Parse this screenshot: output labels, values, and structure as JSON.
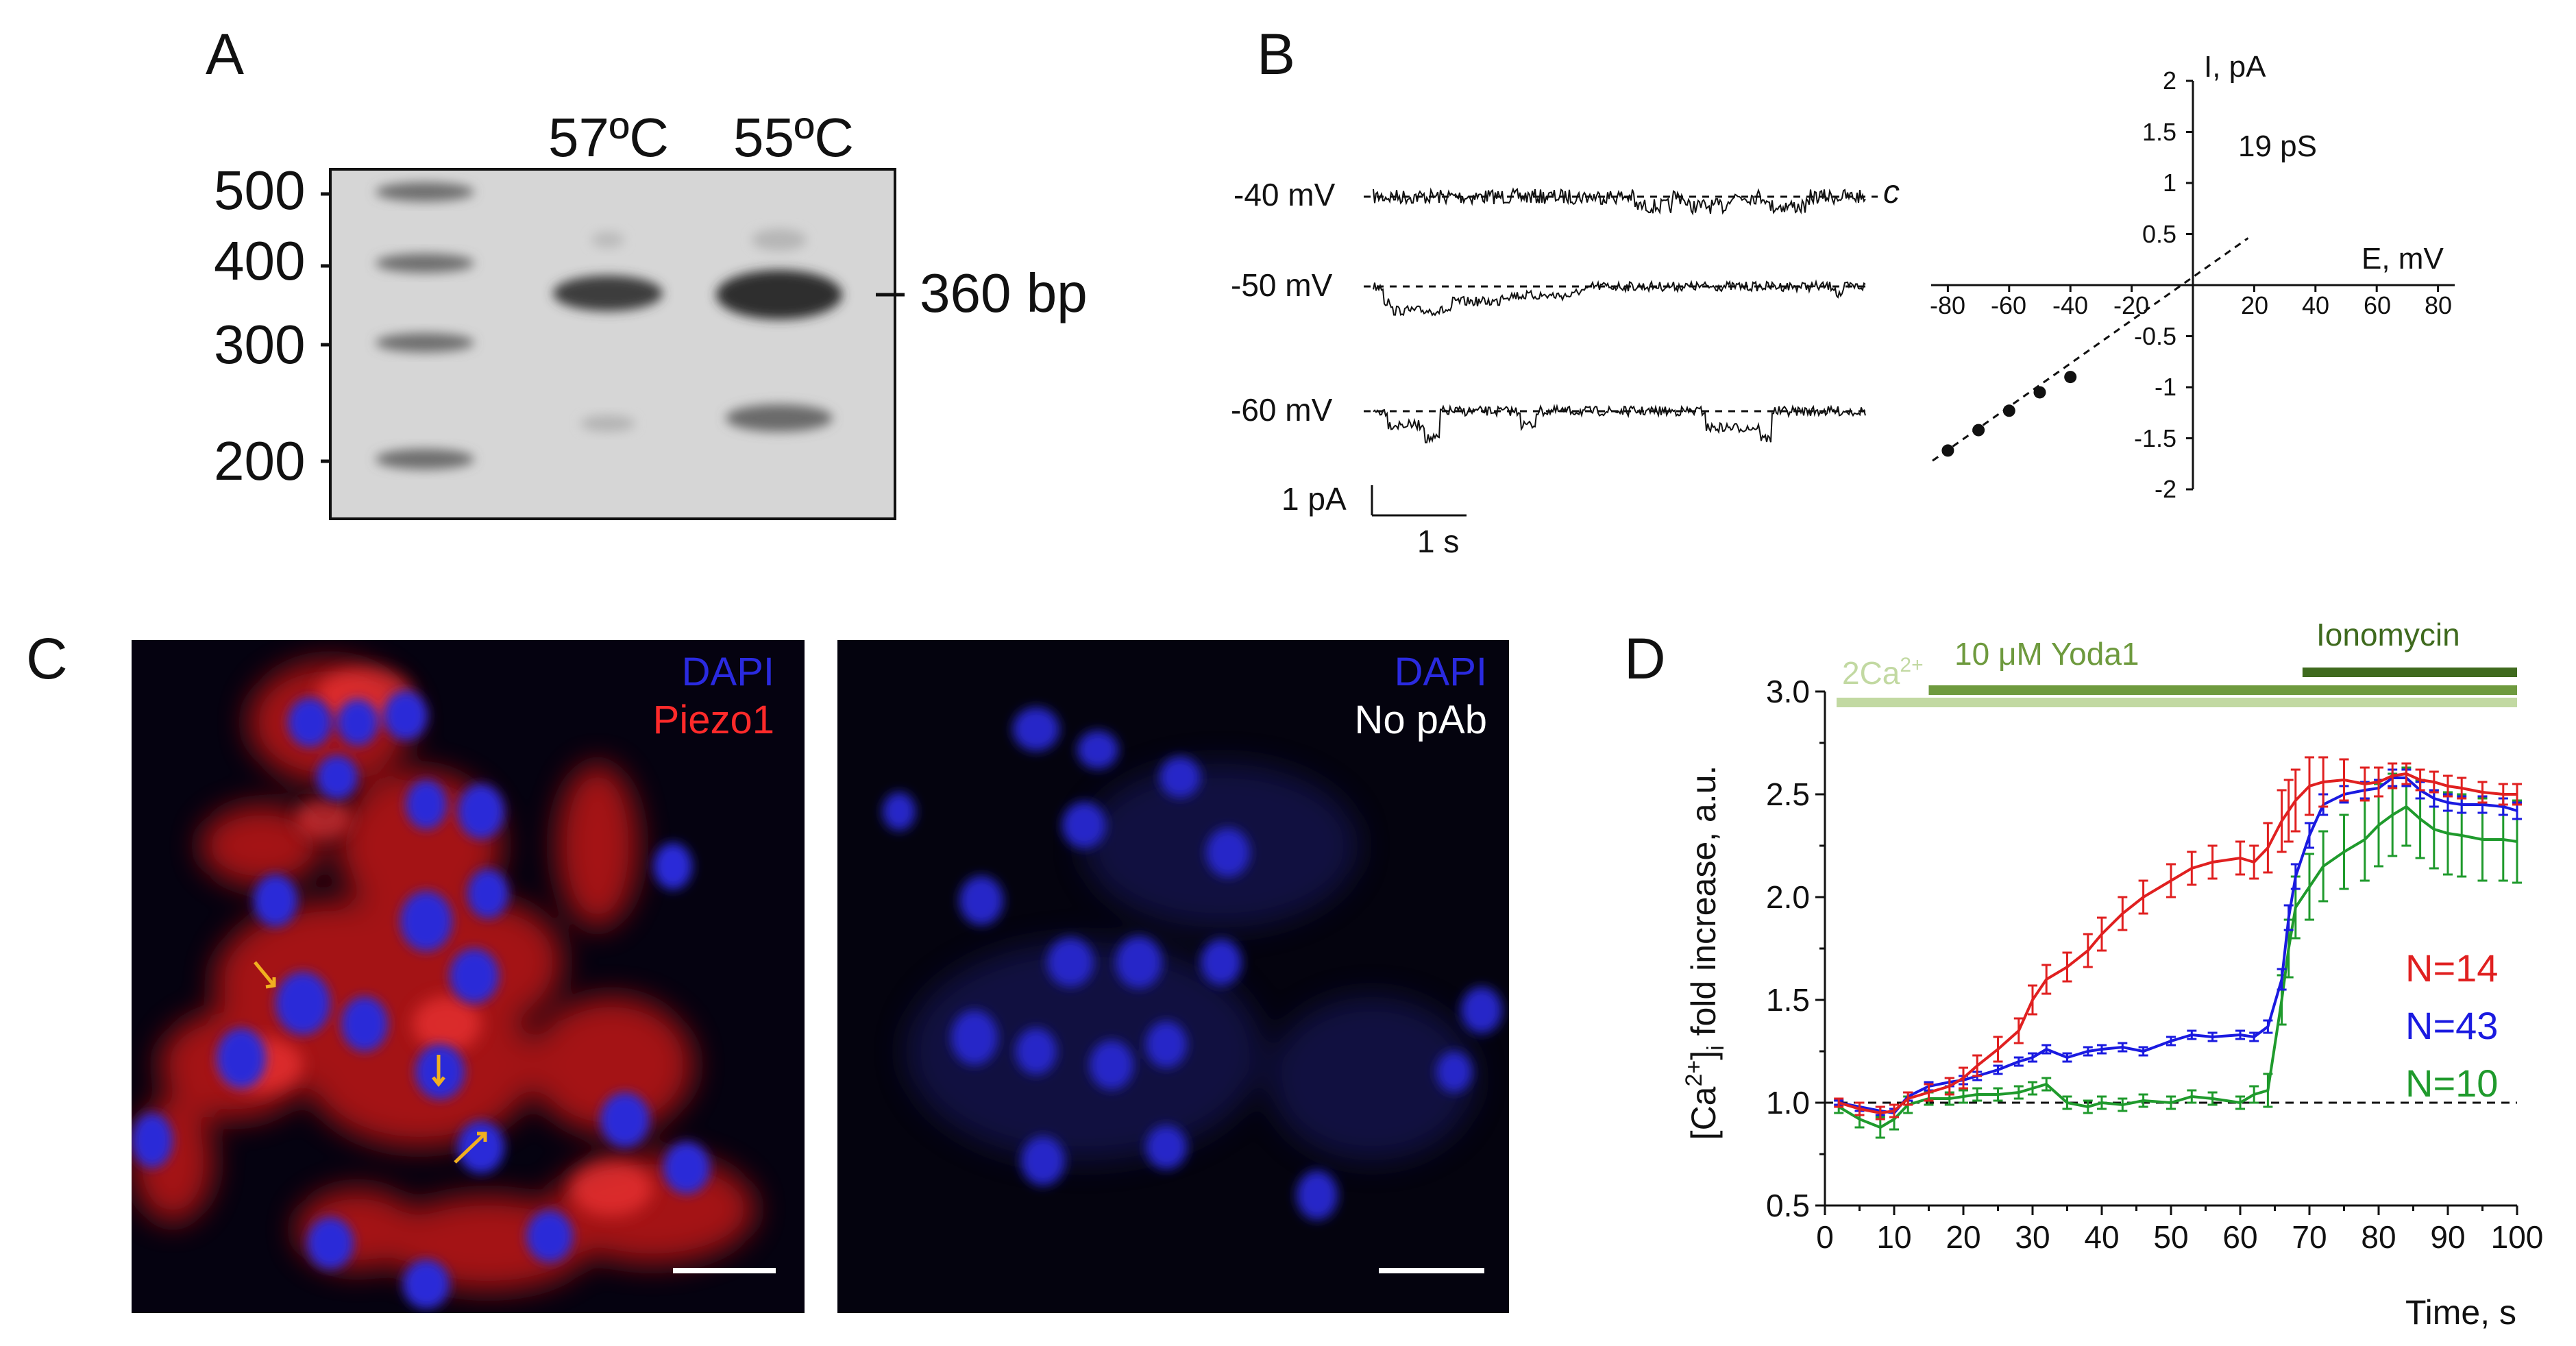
{
  "panels": {
    "A": {
      "label": "A",
      "lanes": [
        "57ºC",
        "55ºC"
      ],
      "markers": [
        "500",
        "400",
        "300",
        "200"
      ],
      "band_label": "360 bp"
    },
    "B": {
      "label": "B",
      "traces": [
        "-40 mV",
        "-50 mV",
        "-60 mV"
      ],
      "closed_label": "c",
      "scalebar_y": "1 pA",
      "scalebar_x": "1 s",
      "iv": {
        "y_label": "I, pA",
        "x_label": "E, mV",
        "conductance": "19 pS",
        "x_ticks": [
          "-80",
          "-60",
          "-40",
          "-20",
          "20",
          "40",
          "60",
          "80"
        ],
        "y_ticks": [
          "2",
          "1.5",
          "1",
          "0.5",
          "-0.5",
          "-1",
          "-1.5",
          "-2"
        ]
      }
    },
    "C": {
      "label": "C",
      "left": {
        "dapi": "DAPI",
        "stain": "Piezo1"
      },
      "right": {
        "dapi": "DAPI",
        "stain": "No pAb"
      }
    },
    "D": {
      "label": "D",
      "bars": [
        "2Ca",
        "2+",
        "10 μM Yoda1",
        "Ionomycin"
      ],
      "legend": [
        "N=14",
        "N=43",
        "N=10"
      ]
    }
  },
  "chart_data": [
    {
      "panel": "B",
      "type": "scatter",
      "xlabel": "E, mV",
      "ylabel": "I, pA",
      "annotation": "19 pS",
      "xlim": [
        -85,
        85
      ],
      "ylim": [
        -2,
        2
      ],
      "points": {
        "x": [
          -80,
          -70,
          -60,
          -50,
          -40
        ],
        "y": [
          -1.62,
          -1.42,
          -1.23,
          -1.05,
          -0.9
        ]
      },
      "fit_line": {
        "x": [
          -85,
          18
        ],
        "y": [
          -1.72,
          0.46
        ]
      }
    },
    {
      "panel": "D",
      "type": "line",
      "xlabel": "Time, s",
      "ylabel": "[Ca2+]i fold increase, a.u.",
      "xlim": [
        0,
        100
      ],
      "ylim": [
        0.5,
        3.0
      ],
      "x_ticks": [
        0,
        10,
        20,
        30,
        40,
        50,
        60,
        70,
        80,
        90,
        100
      ],
      "y_ticks": [
        0.5,
        1.0,
        1.5,
        2.0,
        2.5,
        3.0
      ],
      "baseline": 1.0,
      "x": [
        2,
        5,
        8,
        10,
        12,
        15,
        18,
        20,
        22,
        25,
        28,
        30,
        32,
        35,
        38,
        40,
        43,
        46,
        50,
        53,
        56,
        60,
        62,
        64,
        66,
        67,
        68,
        70,
        72,
        75,
        78,
        80,
        82,
        84,
        86,
        88,
        90,
        92,
        95,
        98,
        100
      ],
      "series": [
        {
          "name": "N=14",
          "color": "#e02020",
          "values": [
            1.0,
            0.97,
            0.95,
            0.96,
            1.02,
            1.05,
            1.08,
            1.12,
            1.18,
            1.26,
            1.35,
            1.5,
            1.6,
            1.66,
            1.74,
            1.82,
            1.92,
            2.0,
            2.08,
            2.14,
            2.17,
            2.19,
            2.17,
            2.24,
            2.37,
            2.42,
            2.47,
            2.54,
            2.56,
            2.57,
            2.55,
            2.56,
            2.59,
            2.6,
            2.57,
            2.56,
            2.54,
            2.53,
            2.51,
            2.5,
            2.5
          ],
          "error": [
            0.02,
            0.03,
            0.03,
            0.03,
            0.03,
            0.04,
            0.04,
            0.05,
            0.05,
            0.06,
            0.06,
            0.07,
            0.07,
            0.07,
            0.08,
            0.08,
            0.08,
            0.08,
            0.08,
            0.08,
            0.08,
            0.08,
            0.08,
            0.12,
            0.15,
            0.15,
            0.15,
            0.14,
            0.12,
            0.1,
            0.08,
            0.07,
            0.06,
            0.05,
            0.05,
            0.05,
            0.05,
            0.05,
            0.05,
            0.05,
            0.05
          ]
        },
        {
          "name": "N=43",
          "color": "#1a1ae0",
          "values": [
            1.0,
            0.98,
            0.96,
            0.95,
            1.03,
            1.08,
            1.1,
            1.11,
            1.13,
            1.16,
            1.2,
            1.22,
            1.26,
            1.22,
            1.25,
            1.26,
            1.27,
            1.25,
            1.3,
            1.33,
            1.32,
            1.33,
            1.32,
            1.37,
            1.6,
            1.9,
            2.1,
            2.3,
            2.45,
            2.5,
            2.52,
            2.53,
            2.58,
            2.58,
            2.52,
            2.48,
            2.46,
            2.45,
            2.45,
            2.44,
            2.42
          ],
          "error": [
            0.01,
            0.02,
            0.02,
            0.02,
            0.02,
            0.02,
            0.02,
            0.02,
            0.02,
            0.02,
            0.02,
            0.02,
            0.02,
            0.02,
            0.02,
            0.02,
            0.02,
            0.02,
            0.02,
            0.02,
            0.02,
            0.02,
            0.02,
            0.03,
            0.05,
            0.06,
            0.06,
            0.06,
            0.05,
            0.04,
            0.04,
            0.04,
            0.04,
            0.04,
            0.04,
            0.04,
            0.04,
            0.04,
            0.04,
            0.04,
            0.04
          ]
        },
        {
          "name": "N=10",
          "color": "#1f9a2c",
          "values": [
            0.98,
            0.92,
            0.88,
            0.92,
            0.99,
            1.02,
            1.02,
            1.03,
            1.04,
            1.04,
            1.05,
            1.07,
            1.09,
            1.0,
            0.98,
            1.0,
            0.99,
            1.01,
            1.0,
            1.03,
            1.02,
            1.0,
            1.04,
            1.06,
            1.5,
            1.75,
            1.95,
            2.05,
            2.15,
            2.22,
            2.28,
            2.35,
            2.4,
            2.44,
            2.38,
            2.33,
            2.31,
            2.3,
            2.28,
            2.28,
            2.27
          ],
          "error": [
            0.03,
            0.04,
            0.05,
            0.05,
            0.04,
            0.03,
            0.03,
            0.03,
            0.03,
            0.03,
            0.03,
            0.03,
            0.03,
            0.03,
            0.03,
            0.03,
            0.03,
            0.03,
            0.03,
            0.03,
            0.03,
            0.03,
            0.04,
            0.08,
            0.12,
            0.14,
            0.15,
            0.16,
            0.17,
            0.18,
            0.2,
            0.2,
            0.2,
            0.19,
            0.19,
            0.19,
            0.2,
            0.2,
            0.2,
            0.2,
            0.2
          ]
        }
      ],
      "treatment_bars": [
        {
          "label": "2Ca2+",
          "start": 0,
          "end": 100,
          "color": "#c2d9a2"
        },
        {
          "label": "10 μM Yoda1",
          "start": 15,
          "end": 100,
          "color": "#6e9a3e"
        },
        {
          "label": "Ionomycin",
          "start": 69,
          "end": 100,
          "color": "#3f6a1e"
        }
      ]
    }
  ]
}
